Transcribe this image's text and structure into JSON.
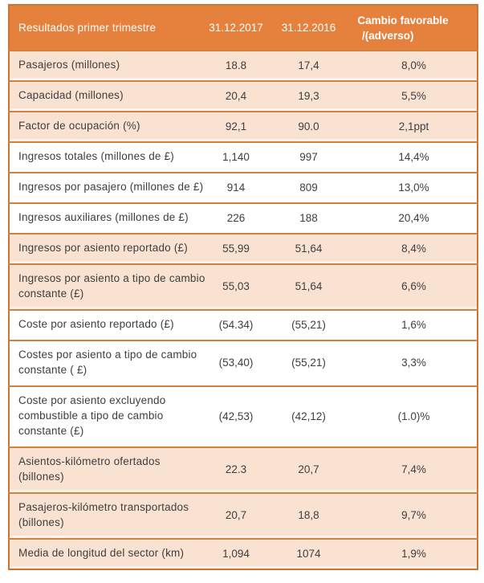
{
  "theme": {
    "header-bg": "#E6803D",
    "header-text": "#FFFFFF",
    "row-peach": "#FAE2D2",
    "row-strip": "#FCF2EA",
    "row-white": "#FFFFFF",
    "grid-line": "#CF8140",
    "outer-border": "#CC7434",
    "body-text": "#3E3E3E"
  },
  "table": {
    "header": {
      "title": "Resultados primer trimestre",
      "col_2017": "31.12.2017",
      "col_2016": "31.12.2016",
      "change_line1": "Cambio favorable",
      "change_line2": "/(adverso)"
    },
    "rows": [
      {
        "label": "Pasajeros (millones)",
        "v2017": "18.8",
        "v2016": "17,4",
        "change": "8,0%",
        "shade": "peach"
      },
      {
        "label": "Capacidad (millones)",
        "v2017": "20,4",
        "v2016": "19,3",
        "change": "5,5%",
        "shade": "peach"
      },
      {
        "label": "Factor de ocupación (%)",
        "v2017": "92,1",
        "v2016": "90.0",
        "change": "2,1ppt",
        "shade": "peach"
      },
      {
        "label": "Ingresos totales (millones de £)",
        "v2017": "1,140",
        "v2016": "997",
        "change": "14,4%",
        "shade": "white"
      },
      {
        "label": "Ingresos por pasajero (millones de £)",
        "v2017": "914",
        "v2016": "809",
        "change": "13,0%",
        "shade": "white"
      },
      {
        "label": "Ingresos auxiliares (millones de £)",
        "v2017": "226",
        "v2016": "188",
        "change": "20,4%",
        "shade": "white"
      },
      {
        "label": "Ingresos por asiento reportado (£)",
        "v2017": "55,99",
        "v2016": "51,64",
        "change": "8,4%",
        "shade": "peach"
      },
      {
        "label": "Ingresos por asiento a tipo de cambio\nconstante (£)",
        "v2017": "55,03",
        "v2016": "51,64",
        "change": "6,6%",
        "shade": "peach"
      },
      {
        "label": "Coste por asiento reportado (£)",
        "v2017": "(54.34)",
        "v2016": "(55,21)",
        "change": "1,6%",
        "shade": "white"
      },
      {
        "label": "Costes por asiento a tipo de cambio\nconstante ( £)",
        "v2017": "(53,40)",
        "v2016": "(55,21)",
        "change": "3,3%",
        "shade": "white"
      },
      {
        "label": "Coste por asiento excluyendo\ncombustible a tipo de cambio\nconstante (£)",
        "v2017": "(42,53)",
        "v2016": "(42,12)",
        "change": "(1.0)%",
        "shade": "white"
      },
      {
        "label": "Asientos-kilómetro ofertados\n(billones)",
        "v2017": "22.3",
        "v2016": "20,7",
        "change": "7,4%",
        "shade": "peach"
      },
      {
        "label": "Pasajeros-kilómetro transportados\n(billones)",
        "v2017": "20,7",
        "v2016": "18,8",
        "change": "9,7%",
        "shade": "peach"
      },
      {
        "label": "Media de longitud del sector (km)",
        "v2017": "1,094",
        "v2016": "1074",
        "change": "1,9%",
        "shade": "peach"
      }
    ]
  }
}
